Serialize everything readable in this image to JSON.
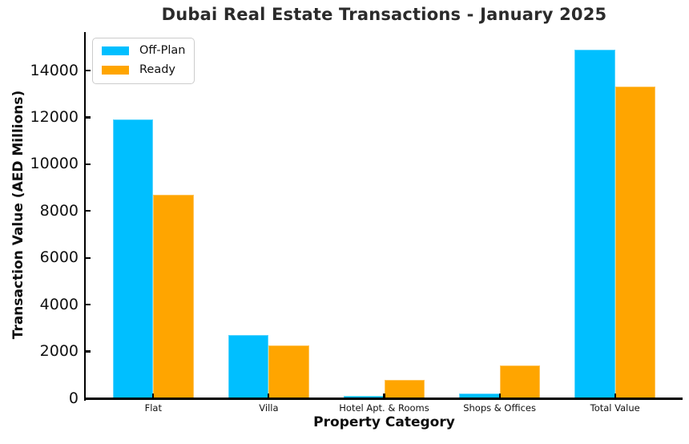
{
  "chart_data": {
    "type": "bar",
    "title": "Dubai Real Estate Transactions - January 2025",
    "xlabel": "Property Category",
    "ylabel": "Transaction Value (AED Millions)",
    "categories": [
      "Flat",
      "Villa",
      "Hotel Apt. & Rooms",
      "Shops & Offices",
      "Total Value"
    ],
    "series": [
      {
        "name": "Off-Plan",
        "color": "#00BFFF",
        "values": [
          11900,
          2700,
          100,
          200,
          14900
        ]
      },
      {
        "name": "Ready",
        "color": "#FFA500",
        "values": [
          8700,
          2250,
          800,
          1400,
          13300
        ]
      }
    ],
    "yticks": [
      0,
      2000,
      4000,
      6000,
      8000,
      10000,
      12000,
      14000
    ],
    "ylim": [
      0,
      15645
    ],
    "legend_position": "upper left",
    "grid": false,
    "colors": {
      "spine": "#000000",
      "title_text": "#2b2b2b",
      "tick_text": "#111111",
      "legend_border": "#cccccc"
    }
  }
}
